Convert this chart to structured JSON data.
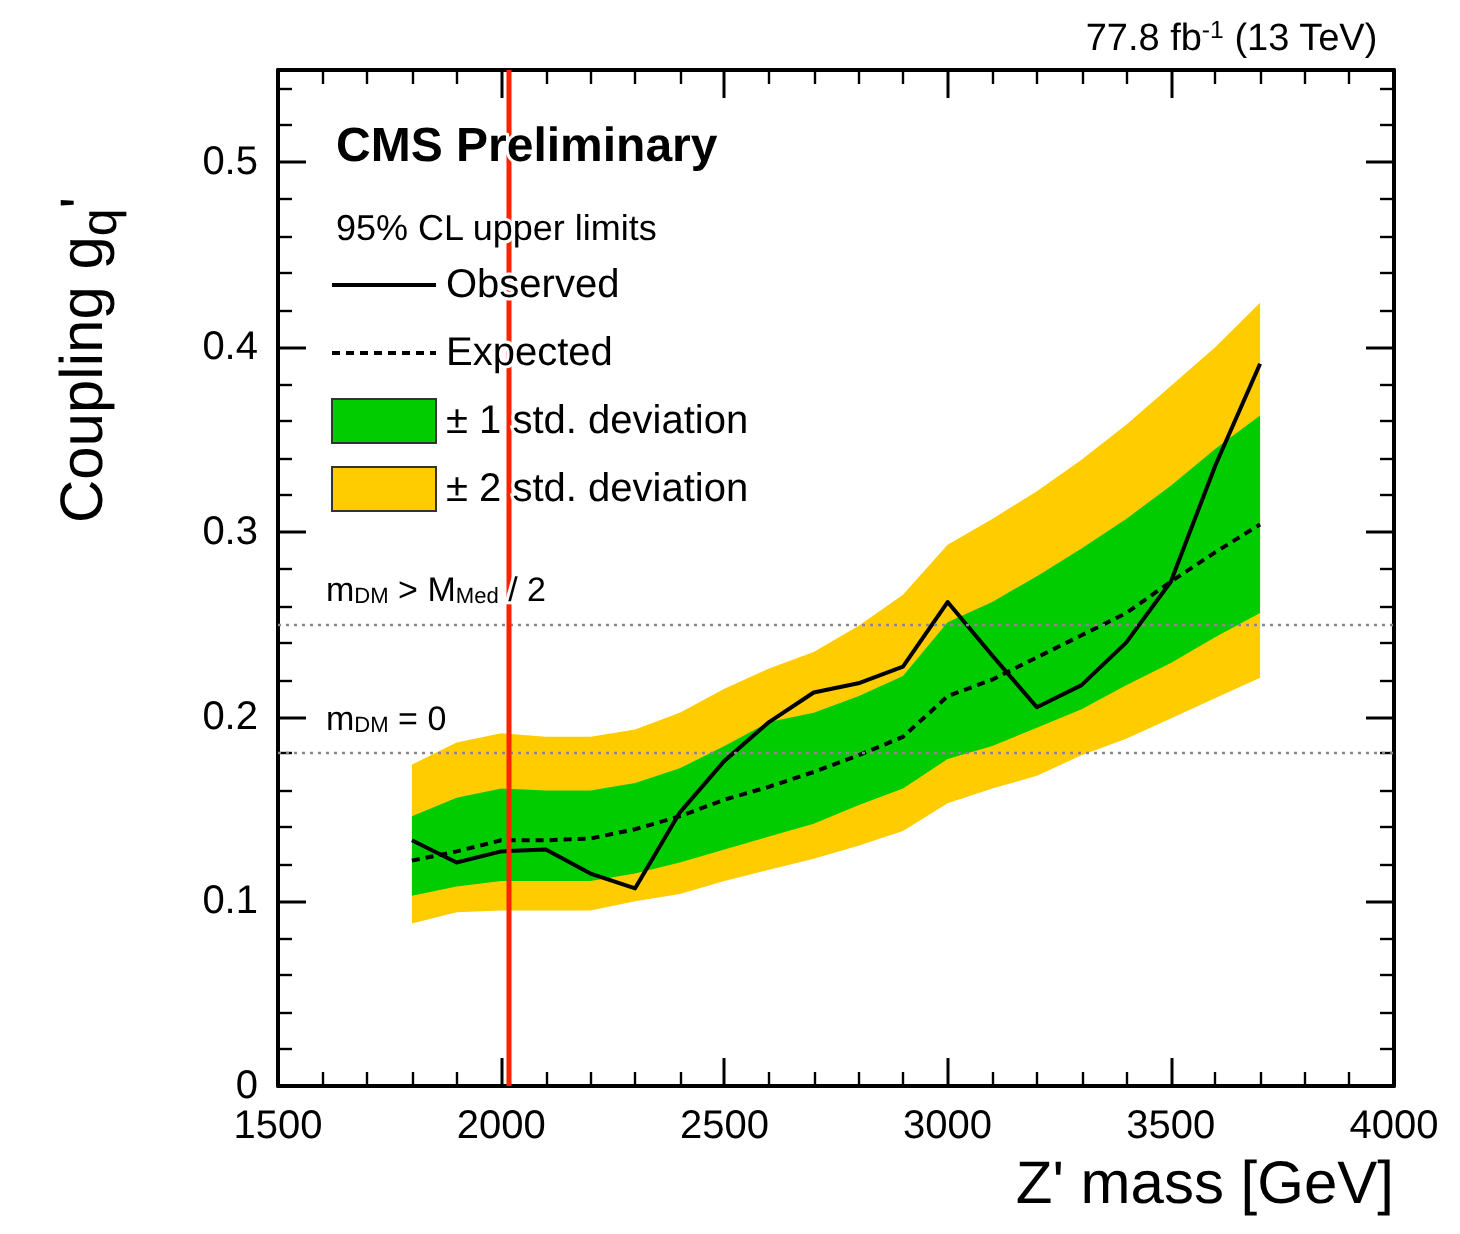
{
  "chart_data": {
    "type": "line",
    "title": "CMS Preliminary",
    "subtitle": "77.8 fb$^{-1}$ (13 TeV)",
    "legend_title": "95% CL upper limits",
    "xlabel": "Z' mass [GeV]",
    "ylabel": "Coupling g$_{q}$'",
    "x": [
      1800,
      1900,
      2000,
      2100,
      2200,
      2300,
      2400,
      2500,
      2600,
      2700,
      2800,
      2900,
      3000,
      3100,
      3200,
      3300,
      3400,
      3500,
      3600,
      3700
    ],
    "series": [
      {
        "name": "± 2 std. deviation",
        "type": "area",
        "color": "#ffcc00",
        "values": [
          null,
          null,
          null,
          null,
          null,
          null,
          null,
          null,
          null,
          null,
          null,
          null,
          null,
          null,
          null,
          null,
          null,
          null,
          null,
          null
        ],
        "lower": [
          0.088,
          0.094,
          0.095,
          0.095,
          0.095,
          0.1,
          0.104,
          0.111,
          0.117,
          0.123,
          0.13,
          0.138,
          0.153,
          0.161,
          0.168,
          0.179,
          0.188,
          0.199,
          0.21,
          0.221
        ],
        "upper": [
          0.174,
          0.186,
          0.191,
          0.189,
          0.189,
          0.193,
          0.202,
          0.215,
          0.226,
          0.235,
          0.249,
          0.266,
          0.293,
          0.307,
          0.322,
          0.339,
          0.358,
          0.379,
          0.4,
          0.424
        ]
      },
      {
        "name": "± 1 std. deviation",
        "type": "area",
        "color": "#00cc00",
        "values": [
          null,
          null,
          null,
          null,
          null,
          null,
          null,
          null,
          null,
          null,
          null,
          null,
          null,
          null,
          null,
          null,
          null,
          null,
          null,
          null
        ],
        "lower": [
          0.103,
          0.108,
          0.111,
          0.111,
          0.111,
          0.115,
          0.121,
          0.128,
          0.135,
          0.142,
          0.152,
          0.161,
          0.177,
          0.184,
          0.194,
          0.204,
          0.217,
          0.229,
          0.243,
          0.256
        ],
        "upper": [
          0.146,
          0.156,
          0.161,
          0.16,
          0.16,
          0.164,
          0.172,
          0.184,
          0.197,
          0.202,
          0.211,
          0.222,
          0.251,
          0.262,
          0.276,
          0.291,
          0.307,
          0.325,
          0.345,
          0.363
        ]
      },
      {
        "name": "Observed",
        "color": "#000000",
        "line_style": "solid",
        "values": [
          0.133,
          0.121,
          0.127,
          0.128,
          0.115,
          0.107,
          0.148,
          0.176,
          0.197,
          0.213,
          0.218,
          0.227,
          0.262,
          0.233,
          0.205,
          0.217,
          0.24,
          0.273,
          0.336,
          0.391
        ]
      },
      {
        "name": "Expected",
        "color": "#000000",
        "line_style": "dashed",
        "values": [
          0.122,
          0.127,
          0.133,
          0.133,
          0.134,
          0.139,
          0.146,
          0.155,
          0.162,
          0.17,
          0.179,
          0.189,
          0.211,
          0.22,
          0.232,
          0.244,
          0.256,
          0.273,
          0.289,
          0.304
        ]
      }
    ],
    "xlim": [
      1500,
      4000
    ],
    "xticks": [
      1500,
      2000,
      2500,
      3000,
      3500,
      4000
    ],
    "ylim": [
      0,
      0.55
    ],
    "yticks": [
      0,
      0.1,
      0.2,
      0.3,
      0.4,
      0.5
    ],
    "ref_lines": [
      {
        "axis": "y",
        "value": 0.25,
        "label": "m$_{DM}$ > M$_{Med}$ / 2",
        "color": "#888888",
        "line_style": "dotted"
      },
      {
        "axis": "y",
        "value": 0.18,
        "label": "m$_{DM}$ = 0",
        "color": "#888888",
        "line_style": "dotted"
      },
      {
        "axis": "x",
        "value": 2015,
        "color": "#ff2200",
        "line_style": "solid"
      }
    ],
    "grid": false,
    "marker": "none",
    "legend": "top left"
  }
}
